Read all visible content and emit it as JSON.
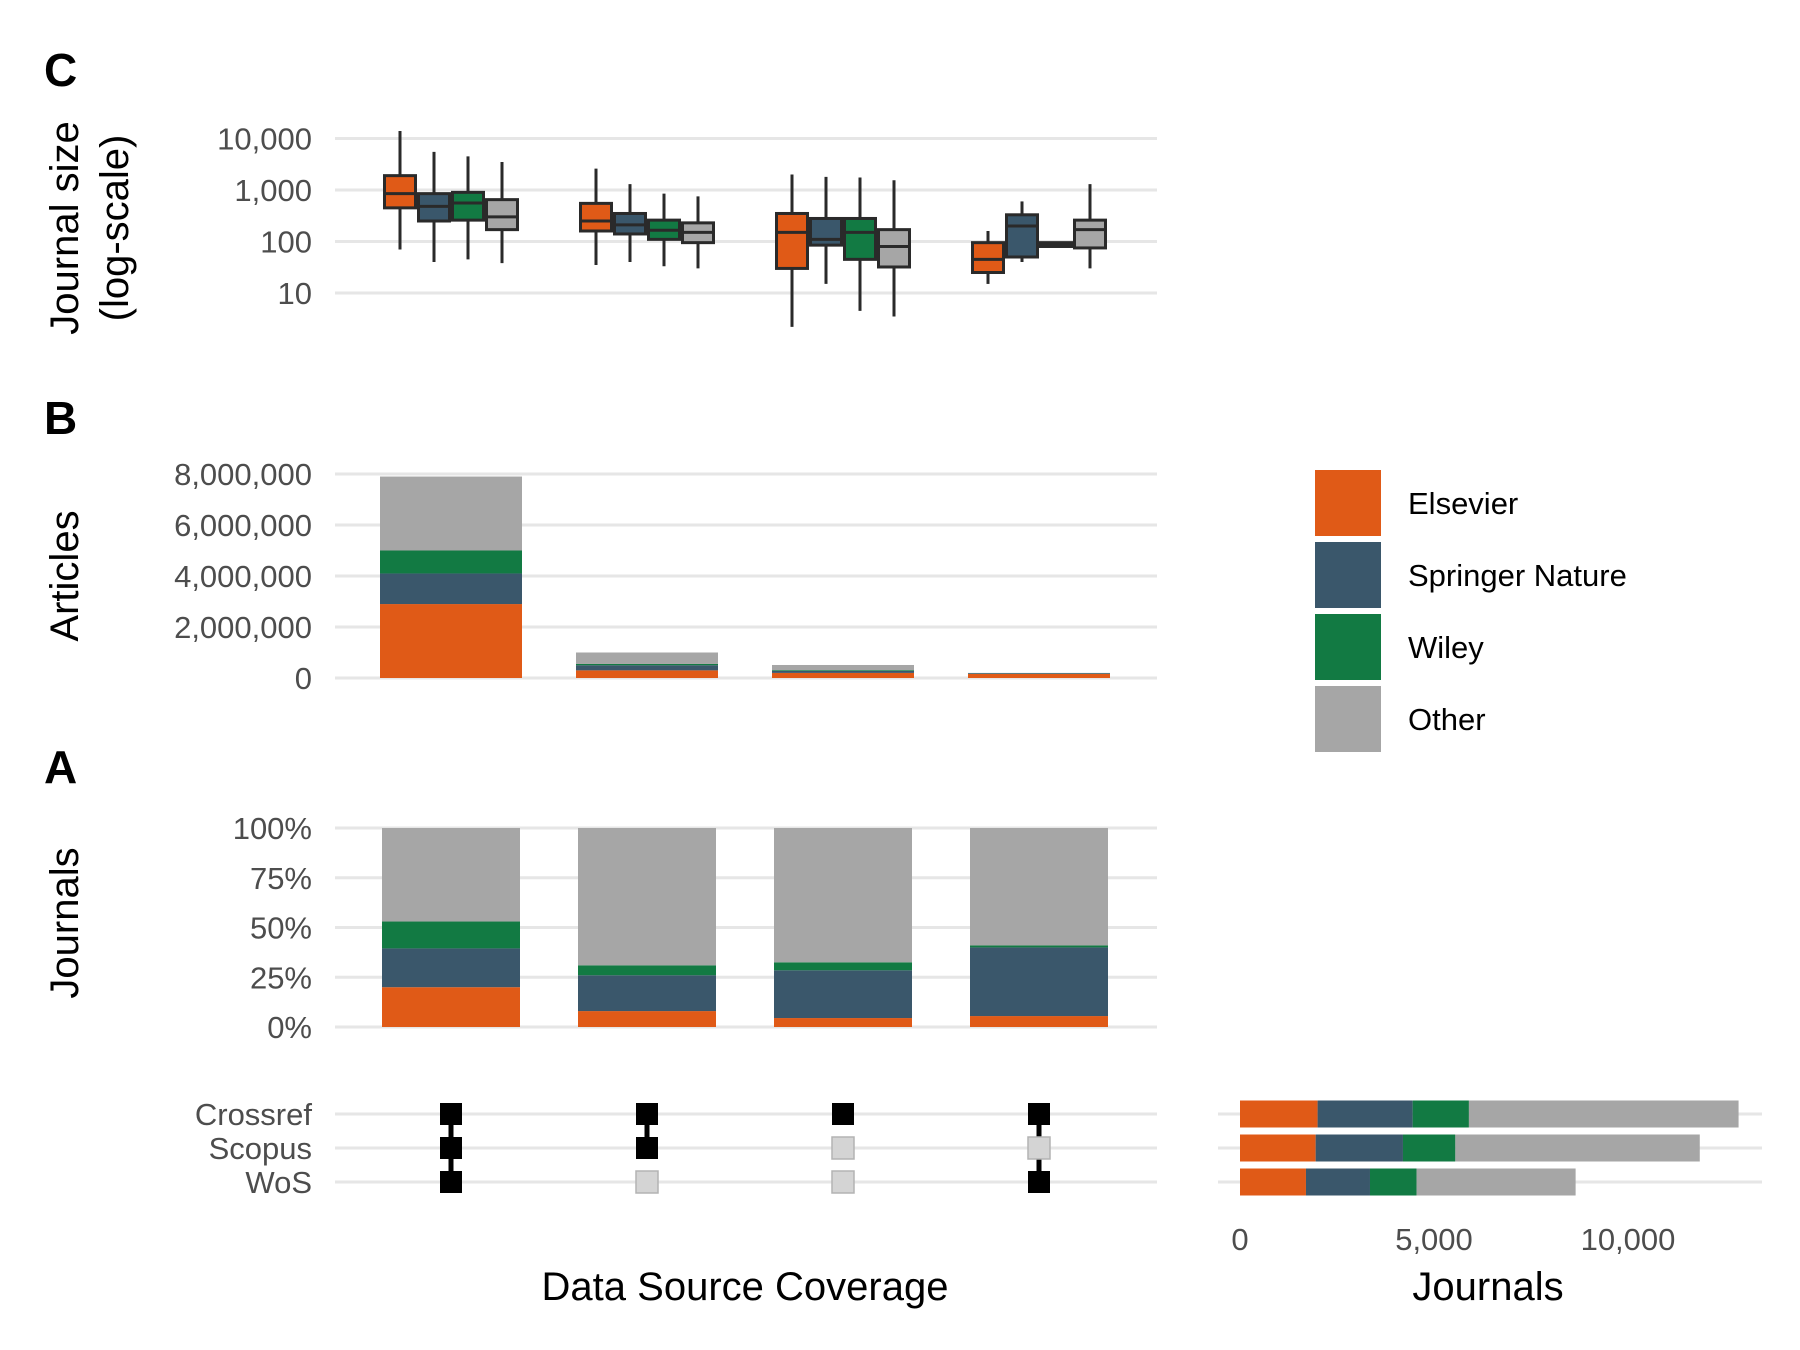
{
  "colors": {
    "Elsevier": "#e05a17",
    "Springer Nature": "#3a576b",
    "Wiley": "#127a43",
    "Other": "#a6a6a6",
    "grid": "#e6e6e6",
    "matrix_on": "#000000",
    "matrix_off": "#d4d4d4"
  },
  "legend": {
    "position": "right",
    "items": [
      "Elsevier",
      "Springer Nature",
      "Wiley",
      "Other"
    ]
  },
  "chart_data": [
    {
      "panel": "C",
      "type": "boxplot",
      "ylabel": "Journal size\n(log-scale)",
      "yscale": "log",
      "yticks": [
        10,
        100,
        1000,
        10000
      ],
      "ytick_labels": [
        "10",
        "100",
        "1,000",
        "10,000"
      ],
      "ylim": [
        1.8,
        20000
      ],
      "groups": [
        {
          "group": 1,
          "boxes": [
            {
              "publisher": "Elsevier",
              "min": 70,
              "q1": 450,
              "median": 850,
              "q3": 1900,
              "max": 14000
            },
            {
              "publisher": "Springer Nature",
              "min": 40,
              "q1": 250,
              "median": 480,
              "q3": 850,
              "max": 5500
            },
            {
              "publisher": "Wiley",
              "min": 45,
              "q1": 260,
              "median": 560,
              "q3": 900,
              "max": 4500
            },
            {
              "publisher": "Other",
              "min": 38,
              "q1": 170,
              "median": 300,
              "q3": 650,
              "max": 3500
            }
          ]
        },
        {
          "group": 2,
          "boxes": [
            {
              "publisher": "Elsevier",
              "min": 35,
              "q1": 160,
              "median": 250,
              "q3": 550,
              "max": 2600
            },
            {
              "publisher": "Springer Nature",
              "min": 40,
              "q1": 140,
              "median": 210,
              "q3": 350,
              "max": 1300
            },
            {
              "publisher": "Wiley",
              "min": 33,
              "q1": 110,
              "median": 165,
              "q3": 260,
              "max": 850
            },
            {
              "publisher": "Other",
              "min": 30,
              "q1": 95,
              "median": 150,
              "q3": 230,
              "max": 750
            }
          ]
        },
        {
          "group": 3,
          "boxes": [
            {
              "publisher": "Elsevier",
              "min": 2.2,
              "q1": 30,
              "median": 150,
              "q3": 350,
              "max": 2000
            },
            {
              "publisher": "Springer Nature",
              "min": 15,
              "q1": 85,
              "median": 110,
              "q3": 280,
              "max": 1800
            },
            {
              "publisher": "Wiley",
              "min": 4.5,
              "q1": 45,
              "median": 150,
              "q3": 280,
              "max": 1750
            },
            {
              "publisher": "Other",
              "min": 3.5,
              "q1": 32,
              "median": 80,
              "q3": 170,
              "max": 1550
            }
          ]
        },
        {
          "group": 4,
          "boxes": [
            {
              "publisher": "Elsevier",
              "min": 15,
              "q1": 25,
              "median": 45,
              "q3": 95,
              "max": 160
            },
            {
              "publisher": "Springer Nature",
              "min": 40,
              "q1": 50,
              "median": 200,
              "q3": 330,
              "max": 600
            },
            {
              "publisher": "Wiley",
              "min": 80,
              "q1": 80,
              "median": 90,
              "q3": 95,
              "max": 95
            },
            {
              "publisher": "Other",
              "min": 30,
              "q1": 75,
              "median": 170,
              "q3": 260,
              "max": 1300
            }
          ]
        }
      ]
    },
    {
      "panel": "B",
      "type": "bar",
      "stacked": true,
      "ylabel": "Articles",
      "yticks": [
        0,
        2000000,
        4000000,
        6000000,
        8000000
      ],
      "ytick_labels": [
        "0",
        "2,000,000",
        "4,000,000",
        "6,000,000",
        "8,000,000"
      ],
      "ylim": [
        0,
        8000000
      ],
      "categories": [
        1,
        2,
        3,
        4
      ],
      "series": [
        {
          "name": "Elsevier",
          "values": [
            2900000,
            300000,
            200000,
            160000
          ]
        },
        {
          "name": "Springer Nature",
          "values": [
            1200000,
            200000,
            80000,
            30000
          ]
        },
        {
          "name": "Wiley",
          "values": [
            900000,
            50000,
            30000,
            5000
          ]
        },
        {
          "name": "Other",
          "values": [
            2900000,
            450000,
            200000,
            5000
          ]
        }
      ]
    },
    {
      "panel": "A",
      "type": "bar",
      "stacked": true,
      "percent": true,
      "ylabel": "Journals",
      "yticks": [
        0,
        25,
        50,
        75,
        100
      ],
      "ytick_labels": [
        "0%",
        "25%",
        "50%",
        "75%",
        "100%"
      ],
      "ylim": [
        0,
        100
      ],
      "categories": [
        1,
        2,
        3,
        4
      ],
      "series": [
        {
          "name": "Elsevier",
          "values": [
            20,
            8,
            4.5,
            5.5
          ]
        },
        {
          "name": "Springer Nature",
          "values": [
            19.5,
            18,
            24,
            34.5
          ]
        },
        {
          "name": "Wiley",
          "values": [
            13.5,
            5,
            4,
            1
          ]
        },
        {
          "name": "Other",
          "values": [
            47,
            69,
            67.5,
            59
          ]
        }
      ]
    },
    {
      "panel": "matrix",
      "type": "table",
      "xlabel": "Data Source Coverage",
      "rows": [
        "Crossref",
        "Scopus",
        "WoS"
      ],
      "membership": [
        [
          true,
          true,
          true
        ],
        [
          true,
          true,
          false
        ],
        [
          true,
          false,
          false
        ],
        [
          true,
          false,
          true
        ]
      ]
    },
    {
      "panel": "set-size",
      "type": "bar",
      "orientation": "horizontal",
      "stacked": true,
      "xlabel": "Journals",
      "xticks": [
        0,
        5000,
        10000
      ],
      "xtick_labels": [
        "0",
        "5,000",
        "10,000"
      ],
      "xlim": [
        0,
        13500
      ],
      "categories": [
        "Crossref",
        "Scopus",
        "WoS"
      ],
      "series": [
        {
          "name": "Elsevier",
          "values": [
            2000,
            1950,
            1700
          ]
        },
        {
          "name": "Springer Nature",
          "values": [
            2450,
            2250,
            1650
          ]
        },
        {
          "name": "Wiley",
          "values": [
            1450,
            1350,
            1200
          ]
        },
        {
          "name": "Other",
          "values": [
            6950,
            6300,
            4100
          ]
        }
      ]
    }
  ],
  "panel_letters": {
    "c": "C",
    "b": "B",
    "a": "A"
  },
  "axis_titles": {
    "c_line1": "Journal size",
    "c_line2": "(log-scale)",
    "b": "Articles",
    "a": "Journals",
    "coverage": "Data Source Coverage",
    "journals": "Journals"
  }
}
